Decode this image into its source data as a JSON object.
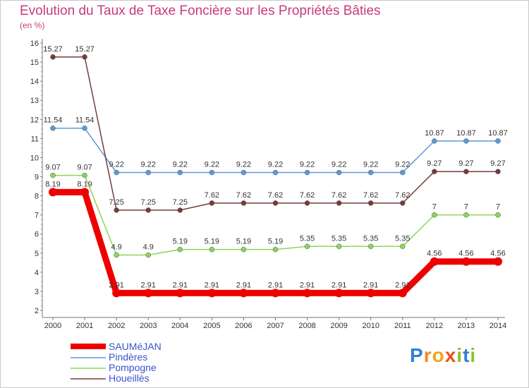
{
  "header": {
    "title": "Evolution du Taux de Taxe Foncière sur les Propriétés Bâties",
    "unit": "(en %)"
  },
  "chart_data": {
    "type": "line",
    "title": "Evolution du Taux de Taxe Foncière sur les Propriétés Bâties",
    "ylabel": "(en %)",
    "xlabel": "",
    "x": [
      "2000",
      "2001",
      "2002",
      "2003",
      "2004",
      "2005",
      "2006",
      "2007",
      "2008",
      "2009",
      "2010",
      "2011",
      "2012",
      "2013",
      "2014"
    ],
    "ylim": [
      2,
      16
    ],
    "yticks": [
      "2",
      "3",
      "4",
      "5",
      "6",
      "7",
      "8",
      "9",
      "10",
      "11",
      "12",
      "13",
      "14",
      "15",
      "16"
    ],
    "series": [
      {
        "name": "SAUMéJAN",
        "color": "#ee0000",
        "values": [
          8.19,
          8.19,
          2.91,
          2.91,
          2.91,
          2.91,
          2.91,
          2.91,
          2.91,
          2.91,
          2.91,
          2.91,
          4.56,
          4.56,
          4.56
        ],
        "labels": [
          "8.19",
          "8.19",
          "2.91",
          "2.91",
          "2.91",
          "2.91",
          "2.91",
          "2.91",
          "2.91",
          "2.91",
          "2.91",
          "2.91",
          "4.56",
          "4.56",
          "4.56"
        ]
      },
      {
        "name": "Pindères",
        "color": "#5b9bd5",
        "values": [
          11.54,
          11.54,
          9.22,
          9.22,
          9.22,
          9.22,
          9.22,
          9.22,
          9.22,
          9.22,
          9.22,
          9.22,
          10.87,
          10.87,
          10.87
        ],
        "labels": [
          "11.54",
          "11.54",
          "9.22",
          "9.22",
          "9.22",
          "9.22",
          "9.22",
          "9.22",
          "9.22",
          "9.22",
          "9.22",
          "9.22",
          "10.87",
          "10.87",
          "10.87"
        ]
      },
      {
        "name": "Pompogne",
        "color": "#8ed35a",
        "values": [
          9.07,
          9.07,
          4.9,
          4.9,
          5.19,
          5.19,
          5.19,
          5.19,
          5.35,
          5.35,
          5.35,
          5.35,
          7,
          7,
          7
        ],
        "labels": [
          "9.07",
          "9.07",
          "4.9",
          "4.9",
          "5.19",
          "5.19",
          "5.19",
          "5.19",
          "5.35",
          "5.35",
          "5.35",
          "5.35",
          "7",
          "7",
          "7"
        ]
      },
      {
        "name": "Houeillès",
        "color": "#7a3a3a",
        "values": [
          15.27,
          15.27,
          7.25,
          7.25,
          7.25,
          7.62,
          7.62,
          7.62,
          7.62,
          7.62,
          7.62,
          7.62,
          9.27,
          9.27,
          9.27
        ],
        "labels": [
          "15.27",
          "15.27",
          "7.25",
          "7.25",
          "7.25",
          "7.62",
          "7.62",
          "7.62",
          "7.62",
          "7.62",
          "7.62",
          "7.62",
          "9.27",
          "9.27",
          "9.27"
        ]
      }
    ],
    "legend": [
      "SAUMéJAN",
      "Pindères",
      "Pompogne",
      "Houeillès"
    ],
    "grid": false
  },
  "logo": {
    "letters": [
      "P",
      "r",
      "o",
      "x",
      "i",
      "t",
      "i"
    ]
  }
}
